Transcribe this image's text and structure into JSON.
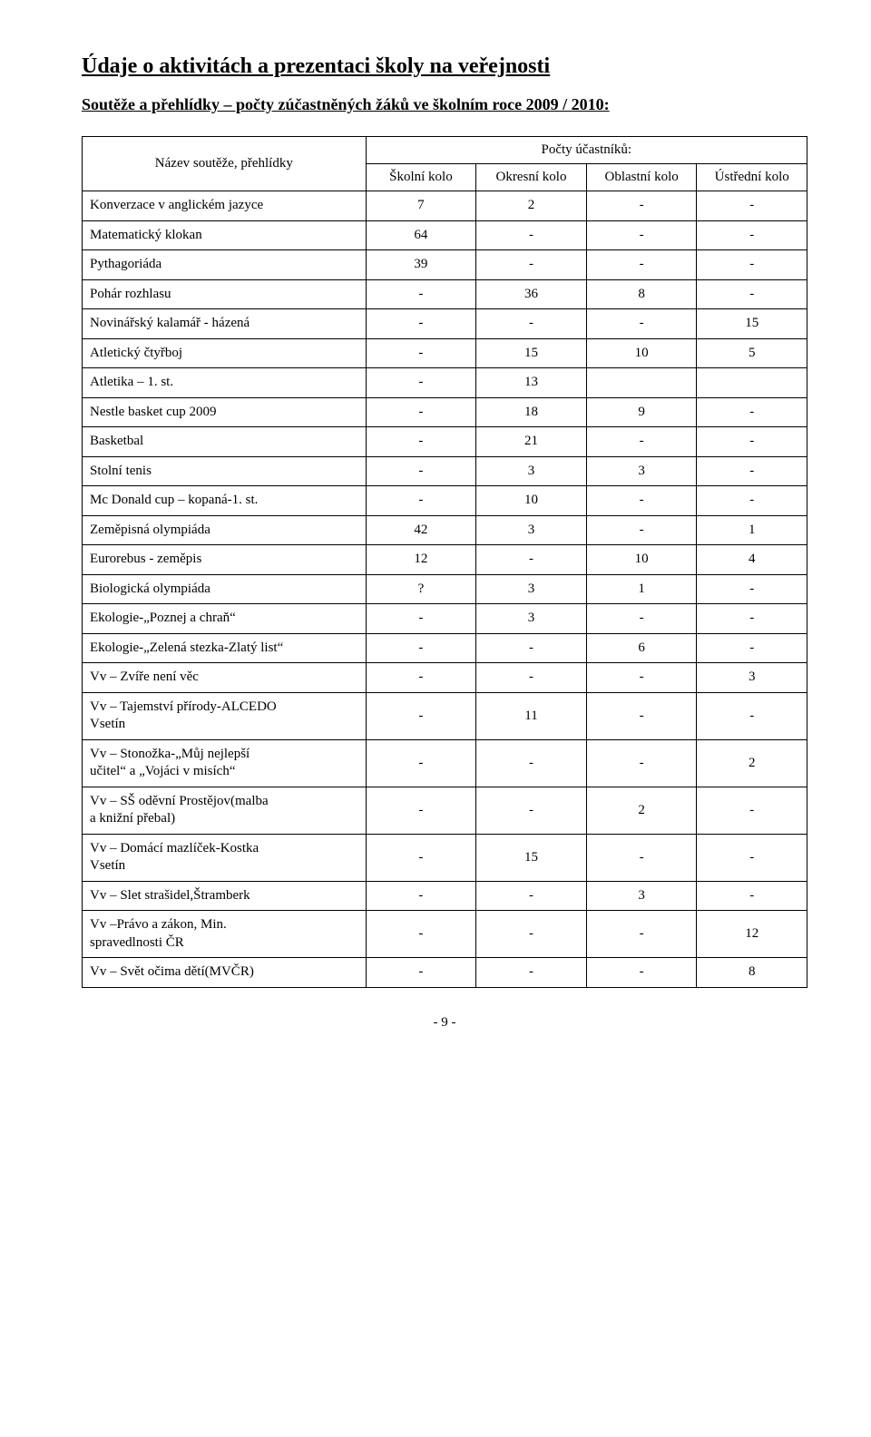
{
  "title": "Údaje o aktivitách a prezentaci školy na veřejnosti",
  "subtitle": "Soutěže a přehlídky – počty zúčastněných žáků ve školním roce 2009 / 2010:",
  "table": {
    "header_name": "Název soutěže, přehlídky",
    "header_group": "Počty účastníků:",
    "columns": [
      "Školní kolo",
      "Okresní kolo",
      "Oblastní kolo",
      "Ústřední kolo"
    ],
    "rows": [
      {
        "name": "Konverzace v anglickém jazyce",
        "vals": [
          "7",
          "2",
          "-",
          "-"
        ]
      },
      {
        "name": "Matematický klokan",
        "vals": [
          "64",
          "-",
          "-",
          "-"
        ]
      },
      {
        "name": "Pythagoriáda",
        "vals": [
          "39",
          "-",
          "-",
          "-"
        ]
      },
      {
        "name": "Pohár rozhlasu",
        "vals": [
          "-",
          "36",
          "8",
          "-"
        ]
      },
      {
        "name": "Novinářský kalamář - házená",
        "vals": [
          "-",
          "-",
          "-",
          "15"
        ]
      },
      {
        "name": "Atletický čtyřboj",
        "vals": [
          "-",
          "15",
          "10",
          "5"
        ]
      },
      {
        "name": "Atletika – 1. st.",
        "vals": [
          "-",
          "13",
          "",
          ""
        ]
      },
      {
        "name": "Nestle basket cup 2009",
        "vals": [
          "-",
          "18",
          "9",
          "-"
        ]
      },
      {
        "name": "Basketbal",
        "vals": [
          "-",
          "21",
          "-",
          "-"
        ]
      },
      {
        "name": "Stolní tenis",
        "vals": [
          "-",
          "3",
          "3",
          "-"
        ]
      },
      {
        "name": "Mc Donald cup – kopaná-1. st.",
        "vals": [
          "-",
          "10",
          "-",
          "-"
        ]
      },
      {
        "name": "Zeměpisná olympiáda",
        "vals": [
          "42",
          "3",
          "-",
          "1"
        ]
      },
      {
        "name": "Eurorebus - zeměpis",
        "vals": [
          "12",
          "-",
          "10",
          "4"
        ]
      },
      {
        "name": "Biologická olympiáda",
        "vals": [
          "?",
          "3",
          "1",
          "-"
        ]
      },
      {
        "name": "Ekologie-„Poznej a chraň“",
        "vals": [
          "-",
          "3",
          "-",
          "-"
        ]
      },
      {
        "name": "Ekologie-„Zelená stezka-Zlatý list“",
        "vals": [
          "-",
          "-",
          "6",
          "-"
        ]
      },
      {
        "name": "Vv – Zvíře není věc",
        "vals": [
          "-",
          "-",
          "-",
          "3"
        ]
      },
      {
        "name": "Vv – Tajemství přírody-ALCEDO\n           Vsetín",
        "vals": [
          "-",
          "11",
          "-",
          "-"
        ]
      },
      {
        "name": "Vv – Stonožka-„Můj nejlepší\nučitel“ a „Vojáci v misích“",
        "vals": [
          "-",
          "-",
          "-",
          "2"
        ]
      },
      {
        "name": "Vv –  SŠ oděvní Prostějov(malba\n         a knižní přebal)",
        "vals": [
          "-",
          "-",
          "2",
          "-"
        ]
      },
      {
        "name": "Vv – Domácí mazlíček-Kostka\n         Vsetín",
        "vals": [
          "-",
          "15",
          "-",
          "-"
        ]
      },
      {
        "name": "Vv – Slet strašidel,Štramberk",
        "vals": [
          "-",
          "-",
          "3",
          "-"
        ]
      },
      {
        "name": "Vv –Právo a zákon, Min.\n         spravedlnosti ČR",
        "vals": [
          "-",
          "-",
          "-",
          "12"
        ]
      },
      {
        "name": "Vv – Svět očima dětí(MVČR)",
        "vals": [
          "-",
          "-",
          "-",
          "8"
        ]
      }
    ]
  },
  "page_number": "- 9 -"
}
